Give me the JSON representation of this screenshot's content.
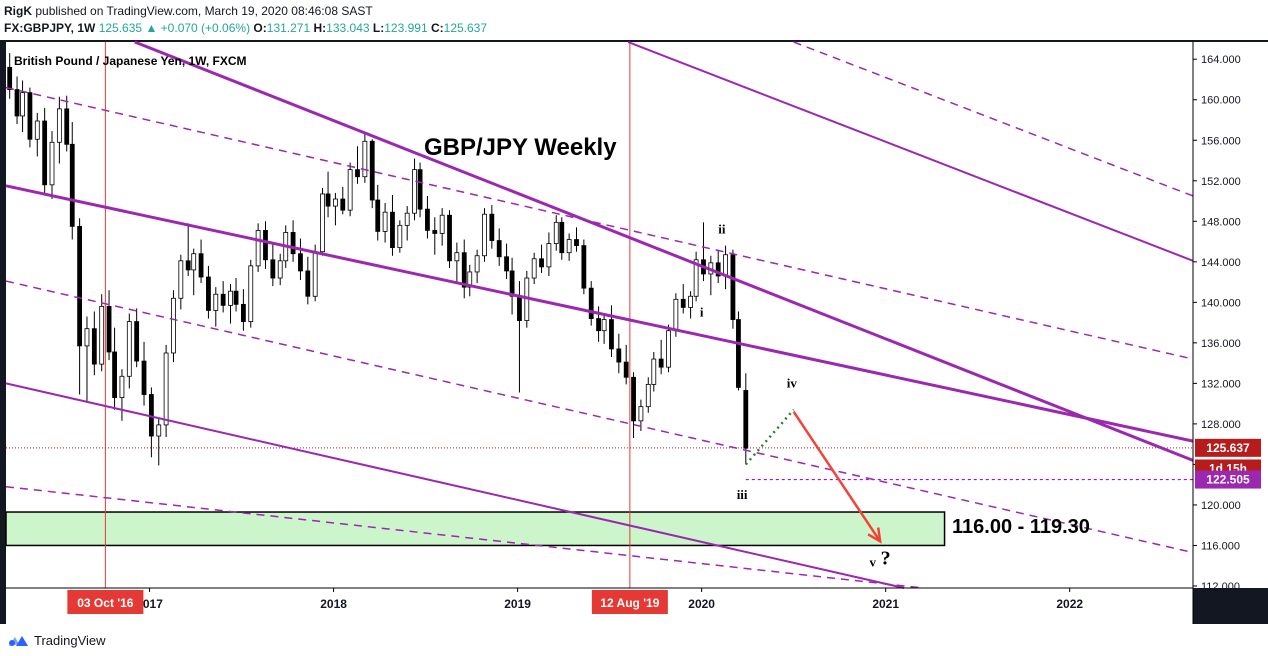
{
  "header": {
    "author": "RigK",
    "published_text": "published on TradingView.com, March 19, 2020 08:46:08 SAST",
    "symbol": "FX:GBPJPY, 1W",
    "last": "125.635",
    "change": "+0.070 (+0.06%)",
    "o_label": "O:",
    "o_value": "131.271",
    "h_label": "H:",
    "h_value": "133.043",
    "l_label": "L:",
    "l_value": "123.991",
    "c_label": "C:",
    "c_value": "125.637"
  },
  "footer": {
    "brand": "TradingView",
    "logo_icon": "tradingview-logo-icon"
  },
  "chart_data": {
    "type": "candlestick",
    "title": "GBP/JPY Weekly",
    "subtitle": "British Pound / Japanese Yen, 1W, FXCM",
    "x_axis_labels": [
      {
        "date": 2017.0,
        "label": "2017"
      },
      {
        "date": 2018.0,
        "label": "2018"
      },
      {
        "date": 2019.0,
        "label": "2019"
      },
      {
        "date": 2020.0,
        "label": "2020"
      },
      {
        "date": 2021.0,
        "label": "2021"
      },
      {
        "date": 2022.0,
        "label": "2022"
      }
    ],
    "x_range": [
      2016.22,
      2022.67
    ],
    "y_range": [
      111.8,
      165.7
    ],
    "y_ticks": [
      112,
      116,
      120,
      124,
      128,
      132,
      136,
      140,
      144,
      148,
      152,
      156,
      160,
      164
    ],
    "price_labels": [
      {
        "value": 125.637,
        "label": "125.637",
        "color": "#b71c1c"
      },
      {
        "value": 123.6,
        "label": "1d 15h",
        "color": "#b71c1c"
      },
      {
        "value": 122.505,
        "label": "122.505",
        "color": "#9c27b0"
      }
    ],
    "event_markers": [
      {
        "date": 2016.76,
        "label": "03 Oct '16"
      },
      {
        "date": 2019.61,
        "label": "12 Aug '19"
      }
    ],
    "current_price": 125.637,
    "target_price": 122.505,
    "target_zone": {
      "low": 116.0,
      "high": 119.3,
      "label": "116.00 - 119.30",
      "x_from": 2016.22,
      "x_to": 2021.32
    },
    "channel_lines": [
      {
        "style": "solid",
        "weight": 3,
        "from": [
          2016.22,
          151.5
        ],
        "to": [
          2022.67,
          126.3
        ]
      },
      {
        "style": "solid",
        "weight": 3,
        "from": [
          2016.92,
          165.7
        ],
        "to": [
          2022.67,
          124.4
        ]
      },
      {
        "style": "dashed",
        "weight": 1.5,
        "from": [
          2016.22,
          161.2
        ],
        "to": [
          2022.67,
          134.4
        ]
      },
      {
        "style": "dashed",
        "weight": 1.5,
        "from": [
          2016.22,
          142.1
        ],
        "to": [
          2022.67,
          115.3
        ]
      },
      {
        "style": "solid",
        "weight": 2,
        "from": [
          2016.22,
          132.0
        ],
        "to": [
          2021.1,
          111.8
        ]
      },
      {
        "style": "dashed",
        "weight": 1.5,
        "from": [
          2016.22,
          121.8
        ],
        "to": [
          2021.2,
          111.8
        ]
      },
      {
        "style": "solid",
        "weight": 2,
        "from": [
          2019.6,
          165.7
        ],
        "to": [
          2022.67,
          144.1
        ]
      },
      {
        "style": "dashed",
        "weight": 1.5,
        "from": [
          2020.5,
          165.7
        ],
        "to": [
          2022.67,
          150.5
        ]
      }
    ],
    "wave_labels": [
      {
        "label": "i",
        "date": 2020.0,
        "value": 138.6
      },
      {
        "label": "ii",
        "date": 2020.11,
        "value": 146.8
      },
      {
        "label": "iii",
        "date": 2020.22,
        "value": 120.6
      },
      {
        "label": "iv",
        "date": 2020.49,
        "value": 131.6
      },
      {
        "label": "v",
        "date": 2020.93,
        "value": 113.9
      },
      {
        "label": "?",
        "date": 2021.0,
        "value": 114.1
      }
    ],
    "projection_iv": {
      "from": [
        2020.24,
        124.0
      ],
      "to": [
        2020.5,
        129.4
      ]
    },
    "projection_v": {
      "from": [
        2020.5,
        129.2
      ],
      "to": [
        2020.97,
        116.4
      ]
    },
    "ohlc": [
      [
        2016.24,
        163.2,
        164.6,
        160.1,
        161.0
      ],
      [
        2016.28,
        161.0,
        162.3,
        157.6,
        158.4
      ],
      [
        2016.31,
        158.4,
        161.9,
        156.8,
        160.7
      ],
      [
        2016.35,
        160.7,
        161.2,
        155.3,
        156.1
      ],
      [
        2016.39,
        156.1,
        158.7,
        154.4,
        157.9
      ],
      [
        2016.43,
        157.9,
        159.2,
        150.8,
        151.6
      ],
      [
        2016.47,
        151.6,
        156.9,
        150.2,
        155.8
      ],
      [
        2016.51,
        155.8,
        160.3,
        153.7,
        159.1
      ],
      [
        2016.55,
        159.1,
        160.4,
        154.9,
        155.6
      ],
      [
        2016.58,
        155.6,
        157.8,
        146.2,
        147.5
      ],
      [
        2016.62,
        147.5,
        148.3,
        130.9,
        135.7
      ],
      [
        2016.66,
        135.7,
        138.6,
        130.2,
        137.4
      ],
      [
        2016.7,
        137.4,
        139.1,
        132.8,
        133.9
      ],
      [
        2016.74,
        133.9,
        140.8,
        133.2,
        139.6
      ],
      [
        2016.78,
        139.6,
        141.2,
        134.3,
        135.1
      ],
      [
        2016.81,
        135.1,
        137.5,
        129.4,
        130.6
      ],
      [
        2016.85,
        130.6,
        133.4,
        128.3,
        132.7
      ],
      [
        2016.89,
        132.7,
        138.9,
        131.5,
        138.1
      ],
      [
        2016.93,
        138.1,
        139.4,
        133.6,
        134.2
      ],
      [
        2016.97,
        134.2,
        136.1,
        129.8,
        130.9
      ],
      [
        2017.01,
        130.9,
        131.6,
        124.7,
        126.8
      ],
      [
        2017.05,
        126.8,
        128.5,
        123.9,
        127.9
      ],
      [
        2017.09,
        127.9,
        135.8,
        126.7,
        135.0
      ],
      [
        2017.13,
        135.0,
        141.2,
        134.1,
        140.4
      ],
      [
        2017.17,
        140.4,
        144.7,
        139.3,
        144.1
      ],
      [
        2017.21,
        144.1,
        147.8,
        142.6,
        143.2
      ],
      [
        2017.24,
        143.2,
        145.3,
        140.7,
        144.8
      ],
      [
        2017.28,
        144.8,
        146.2,
        141.9,
        142.5
      ],
      [
        2017.32,
        142.5,
        143.6,
        138.4,
        139.2
      ],
      [
        2017.36,
        139.2,
        141.5,
        137.6,
        140.8
      ],
      [
        2017.4,
        140.8,
        142.1,
        139.0,
        139.7
      ],
      [
        2017.44,
        139.7,
        141.8,
        137.9,
        141.1
      ],
      [
        2017.47,
        141.1,
        142.4,
        139.1,
        139.8
      ],
      [
        2017.51,
        139.8,
        141.3,
        137.2,
        138.1
      ],
      [
        2017.55,
        138.1,
        144.2,
        137.5,
        143.6
      ],
      [
        2017.59,
        143.6,
        147.8,
        143.0,
        147.1
      ],
      [
        2017.63,
        147.1,
        148.0,
        143.3,
        144.2
      ],
      [
        2017.67,
        144.2,
        145.9,
        141.6,
        142.4
      ],
      [
        2017.71,
        142.4,
        144.8,
        141.7,
        144.1
      ],
      [
        2017.74,
        144.1,
        147.6,
        143.4,
        146.9
      ],
      [
        2017.78,
        146.9,
        148.1,
        144.0,
        144.8
      ],
      [
        2017.82,
        144.8,
        146.3,
        142.2,
        143.1
      ],
      [
        2017.86,
        143.1,
        144.5,
        139.8,
        140.6
      ],
      [
        2017.9,
        140.6,
        145.7,
        140.1,
        145.0
      ],
      [
        2017.94,
        145.0,
        151.3,
        144.6,
        150.7
      ],
      [
        2017.97,
        150.7,
        152.9,
        148.4,
        149.5
      ],
      [
        2018.01,
        149.5,
        150.8,
        147.6,
        150.2
      ],
      [
        2018.05,
        150.2,
        151.4,
        148.7,
        149.1
      ],
      [
        2018.09,
        149.1,
        153.8,
        148.5,
        153.1
      ],
      [
        2018.13,
        153.1,
        155.4,
        151.7,
        152.4
      ],
      [
        2018.17,
        152.4,
        156.6,
        151.8,
        155.9
      ],
      [
        2018.21,
        155.9,
        156.1,
        149.3,
        150.1
      ],
      [
        2018.24,
        150.1,
        151.6,
        146.1,
        147.0
      ],
      [
        2018.28,
        147.0,
        149.8,
        145.9,
        148.9
      ],
      [
        2018.32,
        148.9,
        150.6,
        144.6,
        145.4
      ],
      [
        2018.36,
        145.4,
        148.1,
        144.9,
        147.6
      ],
      [
        2018.4,
        147.6,
        149.5,
        146.1,
        148.8
      ],
      [
        2018.44,
        148.8,
        154.2,
        148.1,
        153.1
      ],
      [
        2018.47,
        153.1,
        153.8,
        148.4,
        149.2
      ],
      [
        2018.51,
        149.2,
        150.5,
        146.3,
        147.1
      ],
      [
        2018.55,
        147.1,
        148.4,
        144.7,
        146.8
      ],
      [
        2018.59,
        146.8,
        149.3,
        145.6,
        148.6
      ],
      [
        2018.63,
        148.6,
        149.1,
        143.4,
        144.1
      ],
      [
        2018.67,
        144.1,
        145.9,
        142.0,
        144.9
      ],
      [
        2018.71,
        144.9,
        146.2,
        140.4,
        141.5
      ],
      [
        2018.74,
        141.5,
        143.7,
        140.6,
        143.0
      ],
      [
        2018.78,
        143.0,
        145.2,
        141.9,
        144.6
      ],
      [
        2018.82,
        144.6,
        149.3,
        144.0,
        148.7
      ],
      [
        2018.86,
        148.7,
        149.6,
        145.3,
        146.1
      ],
      [
        2018.9,
        146.1,
        147.3,
        143.6,
        144.5
      ],
      [
        2018.94,
        144.5,
        145.8,
        142.3,
        143.1
      ],
      [
        2018.97,
        143.1,
        144.4,
        138.8,
        140.6
      ],
      [
        2019.01,
        140.6,
        142.1,
        131.1,
        138.2
      ],
      [
        2019.05,
        138.2,
        143.1,
        137.5,
        142.4
      ],
      [
        2019.09,
        142.4,
        144.9,
        141.8,
        144.3
      ],
      [
        2019.13,
        144.3,
        145.7,
        142.9,
        143.5
      ],
      [
        2019.17,
        143.5,
        146.9,
        142.6,
        145.8
      ],
      [
        2019.21,
        145.8,
        148.6,
        145.1,
        147.9
      ],
      [
        2019.24,
        147.9,
        148.4,
        144.2,
        144.9
      ],
      [
        2019.28,
        144.9,
        146.8,
        144.1,
        146.2
      ],
      [
        2019.32,
        146.2,
        147.4,
        145.0,
        145.6
      ],
      [
        2019.36,
        145.6,
        146.2,
        140.8,
        141.4
      ],
      [
        2019.4,
        141.4,
        142.1,
        137.7,
        138.4
      ],
      [
        2019.44,
        138.4,
        139.6,
        136.1,
        137.2
      ],
      [
        2019.47,
        137.2,
        138.9,
        135.9,
        138.3
      ],
      [
        2019.51,
        138.3,
        139.7,
        134.6,
        135.4
      ],
      [
        2019.55,
        135.4,
        136.9,
        133.0,
        134.1
      ],
      [
        2019.59,
        134.1,
        135.8,
        131.9,
        132.6
      ],
      [
        2019.63,
        132.6,
        133.1,
        126.6,
        128.3
      ],
      [
        2019.67,
        128.3,
        130.4,
        127.3,
        129.7
      ],
      [
        2019.71,
        129.7,
        132.6,
        129.1,
        131.9
      ],
      [
        2019.74,
        131.9,
        135.1,
        131.2,
        134.4
      ],
      [
        2019.78,
        134.4,
        136.3,
        132.9,
        133.6
      ],
      [
        2019.82,
        133.6,
        137.8,
        133.1,
        137.2
      ],
      [
        2019.86,
        137.2,
        140.9,
        136.6,
        140.3
      ],
      [
        2019.9,
        140.3,
        141.8,
        138.9,
        139.5
      ],
      [
        2019.94,
        139.5,
        141.1,
        138.4,
        140.6
      ],
      [
        2019.97,
        140.6,
        145.0,
        140.1,
        144.2
      ],
      [
        2020.01,
        144.2,
        147.9,
        142.1,
        142.8
      ],
      [
        2020.05,
        142.8,
        144.6,
        140.7,
        143.9
      ],
      [
        2020.09,
        143.9,
        145.2,
        141.9,
        142.6
      ],
      [
        2020.13,
        142.6,
        145.6,
        141.3,
        144.7
      ],
      [
        2020.17,
        144.7,
        145.2,
        137.4,
        138.3
      ],
      [
        2020.2,
        138.3,
        139.1,
        131.3,
        131.6
      ],
      [
        2020.24,
        131.3,
        133.0,
        124.0,
        125.6
      ]
    ]
  }
}
